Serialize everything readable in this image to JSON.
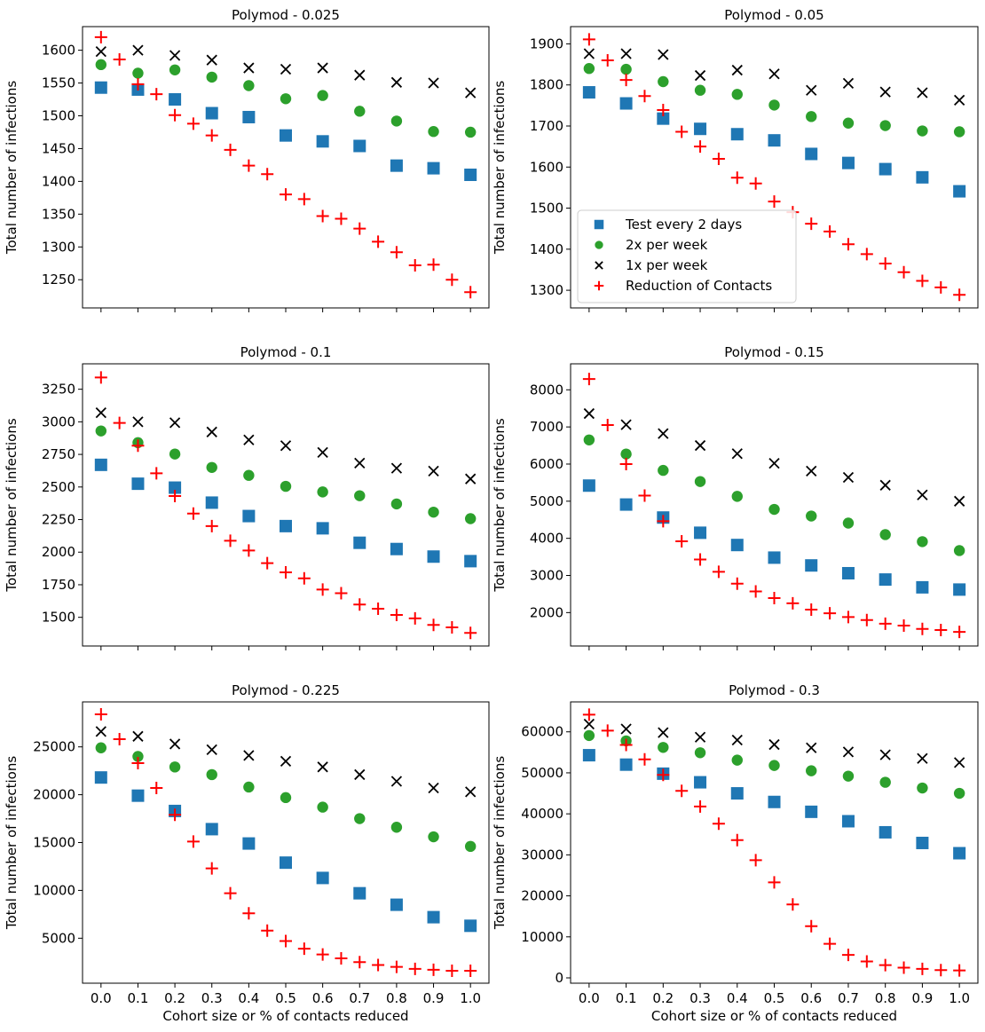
{
  "chart_data": {
    "type": "scatter",
    "xlabel": "Cohort size or % of contacts reduced",
    "ylabel": "Total number of infections",
    "x_ticks": [
      "0.0",
      "0.1",
      "0.2",
      "0.3",
      "0.4",
      "0.5",
      "0.6",
      "0.7",
      "0.8",
      "0.9",
      "1.0"
    ],
    "series_styles": [
      {
        "key": "every2",
        "name": "Test every 2 days",
        "marker": "square",
        "color": "#1f77b4"
      },
      {
        "key": "twice",
        "name": "2x per week",
        "marker": "circle",
        "color": "#2ca02c"
      },
      {
        "key": "once",
        "name": "1x per week",
        "marker": "x",
        "color": "#000000"
      },
      {
        "key": "reduction",
        "name": "Reduction of Contacts",
        "marker": "plus",
        "color": "#ff0000"
      }
    ],
    "legend_panel": 1,
    "legend_loc": "center-left",
    "panels": [
      {
        "title": "Polymod - 0.025",
        "ylim": [
          1207,
          1636
        ],
        "y_ticks": [
          1250,
          1300,
          1350,
          1400,
          1450,
          1500,
          1550,
          1600
        ],
        "y_tick_labels": [
          "1250",
          "1300",
          "1350",
          "1400",
          "1450",
          "1500",
          "1550",
          "1600"
        ],
        "cohort_x": [
          0,
          0.1,
          0.2,
          0.3,
          0.4,
          0.5,
          0.6,
          0.7,
          0.8,
          0.9,
          1.0
        ],
        "every2": [
          1543,
          1540,
          1525,
          1504,
          1498,
          1470,
          1461,
          1454,
          1424,
          1420,
          1410
        ],
        "twice": [
          1578,
          1565,
          1570,
          1559,
          1546,
          1526,
          1531,
          1507,
          1492,
          1476,
          1475
        ],
        "once": [
          1598,
          1600,
          1592,
          1585,
          1573,
          1571,
          1573,
          1562,
          1551,
          1550,
          1535
        ],
        "reduction_x": [
          0,
          0.05,
          0.1,
          0.15,
          0.2,
          0.25,
          0.3,
          0.35,
          0.4,
          0.45,
          0.5,
          0.55,
          0.6,
          0.65,
          0.7,
          0.75,
          0.8,
          0.85,
          0.9,
          0.95,
          1.0
        ],
        "reduction": [
          1620,
          1586,
          1548,
          1533,
          1501,
          1488,
          1470,
          1448,
          1424,
          1411,
          1380,
          1373,
          1347,
          1343,
          1328,
          1308,
          1292,
          1272,
          1273,
          1250,
          1231
        ]
      },
      {
        "title": "Polymod - 0.05",
        "ylim": [
          1257,
          1942
        ],
        "y_ticks": [
          1300,
          1400,
          1500,
          1600,
          1700,
          1800,
          1900
        ],
        "y_tick_labels": [
          "1300",
          "1400",
          "1500",
          "1600",
          "1700",
          "1800",
          "1900"
        ],
        "cohort_x": [
          0,
          0.1,
          0.2,
          0.3,
          0.4,
          0.5,
          0.6,
          0.7,
          0.8,
          0.9,
          1.0
        ],
        "every2": [
          1782,
          1755,
          1718,
          1693,
          1680,
          1665,
          1632,
          1610,
          1595,
          1575,
          1541
        ],
        "twice": [
          1840,
          1838,
          1808,
          1787,
          1777,
          1751,
          1723,
          1707,
          1701,
          1688,
          1686
        ],
        "once": [
          1876,
          1876,
          1874,
          1823,
          1836,
          1827,
          1787,
          1804,
          1783,
          1781,
          1763
        ],
        "reduction_x": [
          0,
          0.05,
          0.1,
          0.15,
          0.2,
          0.25,
          0.3,
          0.35,
          0.4,
          0.45,
          0.5,
          0.55,
          0.6,
          0.65,
          0.7,
          0.75,
          0.8,
          0.85,
          0.9,
          0.95,
          1.0
        ],
        "reduction": [
          1911,
          1860,
          1812,
          1773,
          1739,
          1686,
          1650,
          1620,
          1574,
          1560,
          1516,
          1490,
          1462,
          1443,
          1412,
          1388,
          1365,
          1344,
          1323,
          1307,
          1289
        ]
      },
      {
        "title": "Polymod - 0.1",
        "ylim": [
          1280,
          3445
        ],
        "y_ticks": [
          1500,
          1750,
          2000,
          2250,
          2500,
          2750,
          3000,
          3250
        ],
        "y_tick_labels": [
          "1500",
          "1750",
          "2000",
          "2250",
          "2500",
          "2750",
          "3000",
          "3250"
        ],
        "cohort_x": [
          0,
          0.1,
          0.2,
          0.3,
          0.4,
          0.5,
          0.6,
          0.7,
          0.8,
          0.9,
          1.0
        ],
        "every2": [
          2670,
          2525,
          2495,
          2380,
          2277,
          2200,
          2183,
          2072,
          2024,
          1966,
          1931
        ],
        "twice": [
          2930,
          2840,
          2753,
          2650,
          2589,
          2505,
          2462,
          2433,
          2370,
          2307,
          2257
        ],
        "once": [
          3070,
          3000,
          2993,
          2922,
          2861,
          2817,
          2765,
          2683,
          2644,
          2622,
          2562
        ],
        "reduction_x": [
          0,
          0.05,
          0.1,
          0.15,
          0.2,
          0.25,
          0.3,
          0.35,
          0.4,
          0.45,
          0.5,
          0.55,
          0.6,
          0.65,
          0.7,
          0.75,
          0.8,
          0.85,
          0.9,
          0.95,
          1.0
        ],
        "reduction": [
          3340,
          2991,
          2817,
          2605,
          2431,
          2296,
          2200,
          2088,
          2013,
          1916,
          1845,
          1799,
          1713,
          1685,
          1598,
          1566,
          1518,
          1492,
          1442,
          1423,
          1380
        ]
      },
      {
        "title": "Polymod - 0.15",
        "ylim": [
          1100,
          8700
        ],
        "y_ticks": [
          2000,
          3000,
          4000,
          5000,
          6000,
          7000,
          8000
        ],
        "y_tick_labels": [
          "2000",
          "3000",
          "4000",
          "5000",
          "6000",
          "7000",
          "8000"
        ],
        "cohort_x": [
          0,
          0.1,
          0.2,
          0.3,
          0.4,
          0.5,
          0.6,
          0.7,
          0.8,
          0.9,
          1.0
        ],
        "every2": [
          5420,
          4910,
          4560,
          4150,
          3820,
          3480,
          3270,
          3060,
          2890,
          2680,
          2620
        ],
        "twice": [
          6650,
          6270,
          5830,
          5530,
          5130,
          4780,
          4600,
          4410,
          4100,
          3910,
          3670
        ],
        "once": [
          7360,
          7060,
          6820,
          6500,
          6280,
          6020,
          5810,
          5640,
          5430,
          5170,
          5000
        ],
        "reduction_x": [
          0,
          0.05,
          0.1,
          0.15,
          0.2,
          0.25,
          0.3,
          0.35,
          0.4,
          0.45,
          0.5,
          0.55,
          0.6,
          0.65,
          0.7,
          0.75,
          0.8,
          0.85,
          0.9,
          0.95,
          1.0
        ],
        "reduction": [
          8290,
          7050,
          6000,
          5150,
          4460,
          3920,
          3430,
          3100,
          2780,
          2570,
          2390,
          2250,
          2080,
          1980,
          1880,
          1800,
          1700,
          1650,
          1560,
          1530,
          1480
        ]
      },
      {
        "title": "Polymod - 0.225",
        "ylim": [
          300,
          29700
        ],
        "y_ticks": [
          5000,
          10000,
          15000,
          20000,
          25000
        ],
        "y_tick_labels": [
          "5000",
          "10000",
          "15000",
          "20000",
          "25000"
        ],
        "cohort_x": [
          0,
          0.1,
          0.2,
          0.3,
          0.4,
          0.5,
          0.6,
          0.7,
          0.8,
          0.9,
          1.0
        ],
        "every2": [
          21800,
          19900,
          18300,
          16400,
          14900,
          12900,
          11300,
          9700,
          8500,
          7200,
          6300
        ],
        "twice": [
          24900,
          24000,
          22900,
          22100,
          20800,
          19700,
          18700,
          17500,
          16600,
          15600,
          14600
        ],
        "once": [
          26600,
          26100,
          25300,
          24700,
          24100,
          23500,
          22900,
          22100,
          21400,
          20700,
          20300
        ],
        "reduction_x": [
          0,
          0.05,
          0.1,
          0.15,
          0.2,
          0.25,
          0.3,
          0.35,
          0.4,
          0.45,
          0.5,
          0.55,
          0.6,
          0.65,
          0.7,
          0.75,
          0.8,
          0.85,
          0.9,
          0.95,
          1.0
        ],
        "reduction": [
          28400,
          25800,
          23300,
          20700,
          17900,
          15100,
          12300,
          9700,
          7600,
          5800,
          4700,
          3900,
          3300,
          2900,
          2500,
          2200,
          2000,
          1800,
          1700,
          1600,
          1600
        ]
      },
      {
        "title": "Polymod - 0.3",
        "ylim": [
          -1300,
          67300
        ],
        "y_ticks": [
          0,
          10000,
          20000,
          30000,
          40000,
          50000,
          60000
        ],
        "y_tick_labels": [
          "0",
          "10000",
          "20000",
          "30000",
          "40000",
          "50000",
          "60000"
        ],
        "cohort_x": [
          0,
          0.1,
          0.2,
          0.3,
          0.4,
          0.5,
          0.6,
          0.7,
          0.8,
          0.9,
          1.0
        ],
        "every2": [
          54300,
          52000,
          49800,
          47700,
          45000,
          42900,
          40500,
          38200,
          35500,
          32900,
          30400
        ],
        "twice": [
          59100,
          57800,
          56200,
          54900,
          53100,
          51800,
          50500,
          49200,
          47700,
          46300,
          45000
        ],
        "once": [
          61900,
          60700,
          59800,
          58700,
          58000,
          56900,
          56100,
          55100,
          54400,
          53500,
          52500
        ],
        "reduction_x": [
          0,
          0.05,
          0.1,
          0.15,
          0.2,
          0.25,
          0.3,
          0.35,
          0.4,
          0.45,
          0.5,
          0.55,
          0.6,
          0.65,
          0.7,
          0.75,
          0.8,
          0.85,
          0.9,
          0.95,
          1.0
        ],
        "reduction": [
          64200,
          60300,
          56800,
          53300,
          49500,
          45600,
          41800,
          37600,
          33600,
          28700,
          23300,
          17900,
          12600,
          8300,
          5600,
          4000,
          3100,
          2500,
          2200,
          1900,
          1800
        ]
      }
    ]
  }
}
